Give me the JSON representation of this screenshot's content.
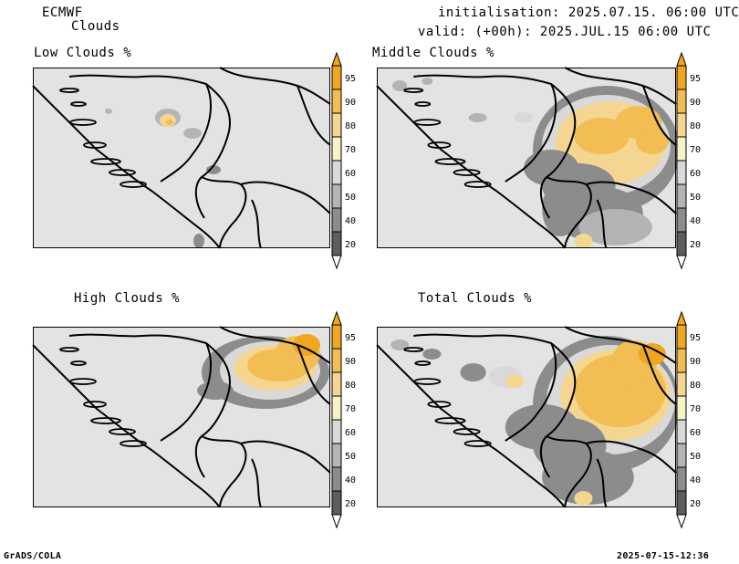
{
  "header": {
    "model": "ECMWF",
    "field": "Clouds",
    "initialisation": "initialisation: 2025.07.15. 06:00 UTC",
    "valid": "valid: (+00h): 2025.JUL.15 06:00 UTC"
  },
  "panels": [
    {
      "title": "Low Clouds %"
    },
    {
      "title": "Middle Clouds %"
    },
    {
      "title": "High Clouds %"
    },
    {
      "title": "Total Clouds %"
    }
  ],
  "colorbar": {
    "ticks": [
      "95",
      "90",
      "80",
      "70",
      "60",
      "50",
      "40",
      "20"
    ],
    "colors": [
      "#f0a61e",
      "#f2bd52",
      "#f5d690",
      "#f8f3c6",
      "#d9d9d9",
      "#b4b4b4",
      "#8c8c8c",
      "#5d5d5d"
    ]
  },
  "footer": {
    "left": "GrADS/COLA",
    "right": "2025-07-15-12:36"
  }
}
